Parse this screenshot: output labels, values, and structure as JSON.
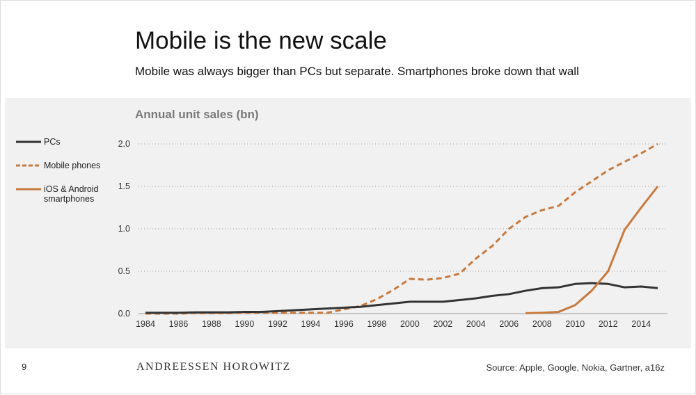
{
  "slide": {
    "title": "Mobile is the new scale",
    "subtitle": "Mobile was always bigger than PCs but separate. Smartphones broke down that wall",
    "page_number": "9",
    "logo": "ANDREESSEN HOROWITZ",
    "source": "Source: Apple, Google, Nokia, Gartner, a16z"
  },
  "chart_data": {
    "type": "line",
    "title": "Annual unit sales (bn)",
    "xlabel": "",
    "ylabel": "Annual unit sales (bn)",
    "xlim": [
      1984,
      2015
    ],
    "ylim": [
      0,
      2.0
    ],
    "yticks": [
      "0.0",
      "0.5",
      "1.0",
      "1.5",
      "2.0"
    ],
    "xticks": [
      "1984",
      "1986",
      "1988",
      "1990",
      "1992",
      "1994",
      "1996",
      "1998",
      "2000",
      "2002",
      "2004",
      "2006",
      "2008",
      "2010",
      "2012",
      "2014"
    ],
    "grid": "horizontal dotted",
    "legend_placement": "left",
    "series": [
      {
        "name": "PCs",
        "color": "#333333",
        "style": "solid",
        "x": [
          1984,
          1985,
          1986,
          1987,
          1988,
          1989,
          1990,
          1991,
          1992,
          1993,
          1994,
          1995,
          1996,
          1997,
          1998,
          1999,
          2000,
          2001,
          2002,
          2003,
          2004,
          2005,
          2006,
          2007,
          2008,
          2009,
          2010,
          2011,
          2012,
          2013,
          2014,
          2015
        ],
        "values": [
          0.01,
          0.01,
          0.01,
          0.015,
          0.015,
          0.015,
          0.02,
          0.02,
          0.03,
          0.04,
          0.05,
          0.06,
          0.07,
          0.08,
          0.1,
          0.12,
          0.14,
          0.14,
          0.14,
          0.16,
          0.18,
          0.21,
          0.23,
          0.27,
          0.3,
          0.31,
          0.35,
          0.36,
          0.35,
          0.31,
          0.32,
          0.3
        ]
      },
      {
        "name": "Mobile phones",
        "color": "#c87a3e",
        "style": "dashed",
        "x": [
          1984,
          1985,
          1986,
          1987,
          1988,
          1989,
          1990,
          1991,
          1992,
          1993,
          1994,
          1995,
          1996,
          1997,
          1998,
          1999,
          2000,
          2001,
          2002,
          2003,
          2004,
          2005,
          2006,
          2007,
          2008,
          2009,
          2010,
          2011,
          2012,
          2013,
          2014,
          2015
        ],
        "values": [
          0.0,
          0.0,
          0.0,
          0.005,
          0.005,
          0.005,
          0.01,
          0.01,
          0.01,
          0.01,
          0.01,
          0.01,
          0.05,
          0.09,
          0.17,
          0.28,
          0.41,
          0.4,
          0.42,
          0.47,
          0.65,
          0.8,
          1.0,
          1.14,
          1.22,
          1.27,
          1.43,
          1.56,
          1.69,
          1.79,
          1.89,
          2.0
        ]
      },
      {
        "name": "iOS & Android smartphones",
        "color": "#c87a3e",
        "style": "solid",
        "x": [
          2007,
          2008,
          2009,
          2010,
          2011,
          2012,
          2013,
          2014,
          2015
        ],
        "values": [
          0.005,
          0.01,
          0.02,
          0.1,
          0.27,
          0.5,
          0.99,
          1.25,
          1.5
        ]
      }
    ]
  }
}
